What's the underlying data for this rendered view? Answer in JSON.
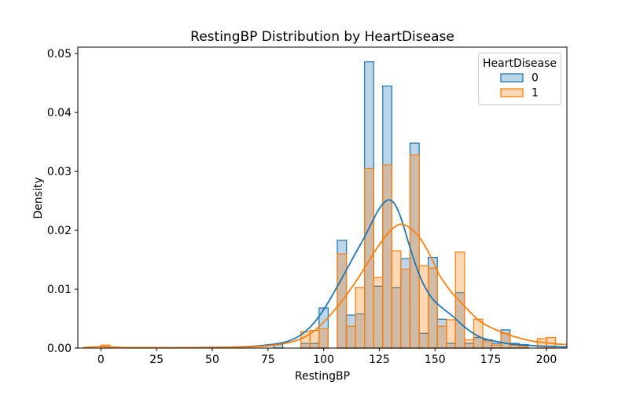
{
  "chart_data": {
    "type": "bar",
    "subtype": "layered-histogram-with-kde",
    "title": "RestingBP Distribution by HeartDisease",
    "xlabel": "RestingBP",
    "ylabel": "Density",
    "xlim": [
      -10.35,
      209.2
    ],
    "ylim": [
      0,
      0.0511
    ],
    "x_ticks": [
      0,
      25,
      50,
      75,
      100,
      125,
      150,
      175,
      200
    ],
    "y_ticks": [
      0,
      0.01,
      0.02,
      0.03,
      0.04,
      0.05
    ],
    "y_tick_labels": [
      "0.00",
      "0.01",
      "0.02",
      "0.03",
      "0.04",
      "0.05"
    ],
    "grid": false,
    "bin_width": 4.08,
    "legend": {
      "title": "HeartDisease",
      "position": "upper right",
      "entries": [
        "0",
        "1"
      ]
    },
    "series": [
      {
        "name": "0",
        "color": "#1f77b4",
        "fill": "rgba(31,119,180,0.3)",
        "bars": [
          [
            77.55,
            0.0006
          ],
          [
            89.8,
            0.0008
          ],
          [
            93.88,
            0.0008
          ],
          [
            97.96,
            0.0068
          ],
          [
            106.12,
            0.0183
          ],
          [
            110.2,
            0.0056
          ],
          [
            114.29,
            0.0058
          ],
          [
            118.37,
            0.0486
          ],
          [
            122.45,
            0.0105
          ],
          [
            126.53,
            0.0445
          ],
          [
            130.61,
            0.0103
          ],
          [
            134.69,
            0.0152
          ],
          [
            138.78,
            0.0348
          ],
          [
            142.86,
            0.0025
          ],
          [
            146.94,
            0.0154
          ],
          [
            151.02,
            0.0049
          ],
          [
            155.1,
            0.0008
          ],
          [
            159.18,
            0.0094
          ],
          [
            163.27,
            0.0008
          ],
          [
            167.35,
            0.0018
          ],
          [
            171.43,
            0.0014
          ],
          [
            175.51,
            0.0008
          ],
          [
            179.59,
            0.0031
          ],
          [
            183.67,
            0.0008
          ],
          [
            187.76,
            0.0006
          ]
        ],
        "kde": [
          [
            30,
            5e-05
          ],
          [
            45,
            0.0001
          ],
          [
            55,
            0.00015
          ],
          [
            62,
            0.0002
          ],
          [
            68,
            0.0003
          ],
          [
            74,
            0.0005
          ],
          [
            80,
            0.0008
          ],
          [
            85,
            0.0013
          ],
          [
            90,
            0.0023
          ],
          [
            95,
            0.004
          ],
          [
            100,
            0.0065
          ],
          [
            105,
            0.0097
          ],
          [
            110,
            0.0131
          ],
          [
            114,
            0.0159
          ],
          [
            118,
            0.0186
          ],
          [
            122,
            0.0216
          ],
          [
            125,
            0.0237
          ],
          [
            128,
            0.025
          ],
          [
            130,
            0.0251
          ],
          [
            132,
            0.0244
          ],
          [
            134,
            0.0228
          ],
          [
            136,
            0.0206
          ],
          [
            138,
            0.018
          ],
          [
            140,
            0.0156
          ],
          [
            142,
            0.0134
          ],
          [
            144,
            0.0115
          ],
          [
            146,
            0.01
          ],
          [
            148,
            0.0088
          ],
          [
            150,
            0.0079
          ],
          [
            152,
            0.0072
          ],
          [
            155,
            0.0063
          ],
          [
            158,
            0.0054
          ],
          [
            162,
            0.004
          ],
          [
            166,
            0.0028
          ],
          [
            170,
            0.0019
          ],
          [
            174,
            0.0014
          ],
          [
            178,
            0.0011
          ],
          [
            182,
            0.0008
          ],
          [
            186,
            0.0006
          ],
          [
            190,
            0.0005
          ],
          [
            195,
            0.0004
          ],
          [
            200,
            0.0003
          ],
          [
            205,
            0.00025
          ],
          [
            209,
            0.0002
          ]
        ]
      },
      {
        "name": "1",
        "color": "#ff7f0e",
        "fill": "rgba(255,127,14,0.3)",
        "bars": [
          [
            0.0,
            0.0005
          ],
          [
            89.8,
            0.0028
          ],
          [
            93.88,
            0.003
          ],
          [
            97.96,
            0.0033
          ],
          [
            106.12,
            0.016
          ],
          [
            110.2,
            0.0037
          ],
          [
            114.29,
            0.0103
          ],
          [
            118.37,
            0.0305
          ],
          [
            122.45,
            0.012
          ],
          [
            126.53,
            0.0311
          ],
          [
            130.61,
            0.0165
          ],
          [
            134.69,
            0.0134
          ],
          [
            138.78,
            0.0328
          ],
          [
            142.86,
            0.014
          ],
          [
            146.94,
            0.0136
          ],
          [
            151.02,
            0.0037
          ],
          [
            155.1,
            0.0048
          ],
          [
            159.18,
            0.0163
          ],
          [
            163.27,
            0.0014
          ],
          [
            167.35,
            0.0049
          ],
          [
            171.43,
            0.0012
          ],
          [
            175.51,
            0.0005
          ],
          [
            179.59,
            0.0025
          ],
          [
            183.67,
            0.0005
          ],
          [
            187.76,
            0.0003
          ],
          [
            195.92,
            0.0016
          ],
          [
            200.0,
            0.0018
          ]
        ],
        "kde": [
          [
            -8,
            0.0001
          ],
          [
            -3,
            0.0002
          ],
          [
            1,
            0.00025
          ],
          [
            5,
            0.0002
          ],
          [
            10,
            0.0001
          ],
          [
            20,
            8e-05
          ],
          [
            30,
            7e-05
          ],
          [
            40,
            8e-05
          ],
          [
            50,
            0.0001
          ],
          [
            58,
            0.00015
          ],
          [
            65,
            0.0002
          ],
          [
            72,
            0.0003
          ],
          [
            78,
            0.0005
          ],
          [
            84,
            0.0009
          ],
          [
            90,
            0.0016
          ],
          [
            95,
            0.0027
          ],
          [
            100,
            0.0044
          ],
          [
            105,
            0.0065
          ],
          [
            110,
            0.0089
          ],
          [
            115,
            0.0116
          ],
          [
            120,
            0.0146
          ],
          [
            124,
            0.017
          ],
          [
            128,
            0.0191
          ],
          [
            131,
            0.0203
          ],
          [
            134,
            0.021
          ],
          [
            137,
            0.0208
          ],
          [
            140,
            0.02
          ],
          [
            143,
            0.0188
          ],
          [
            146,
            0.017
          ],
          [
            149,
            0.0148
          ],
          [
            152,
            0.0124
          ],
          [
            155,
            0.0107
          ],
          [
            158,
            0.0092
          ],
          [
            162,
            0.0076
          ],
          [
            166,
            0.006
          ],
          [
            170,
            0.0046
          ],
          [
            174,
            0.0037
          ],
          [
            178,
            0.003
          ],
          [
            182,
            0.0024
          ],
          [
            186,
            0.0019
          ],
          [
            190,
            0.0015
          ],
          [
            195,
            0.0011
          ],
          [
            200,
            0.0009
          ],
          [
            205,
            0.0007
          ],
          [
            209,
            0.0006
          ]
        ]
      }
    ]
  }
}
